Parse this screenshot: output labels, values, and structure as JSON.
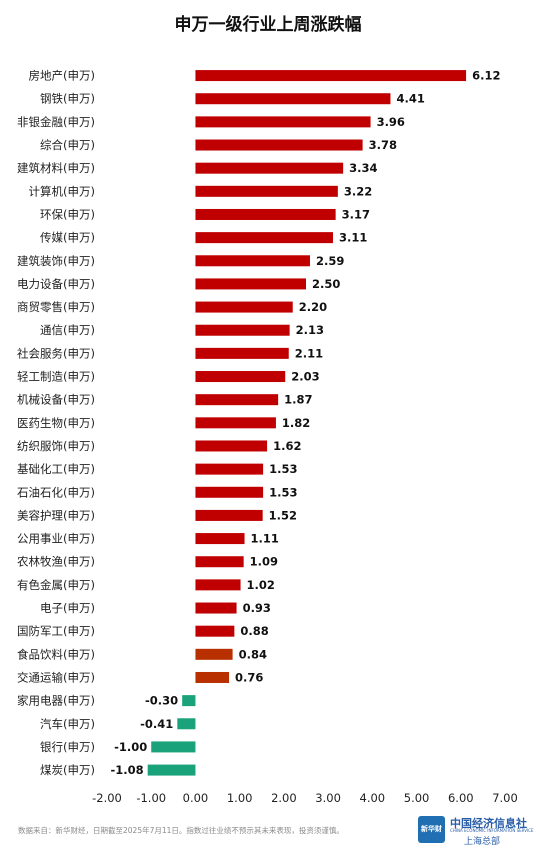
{
  "chart_data": {
    "type": "bar",
    "orientation": "horizontal",
    "title": "申万一级行业上周涨跌幅",
    "categories": [
      "房地产(申万)",
      "钢铁(申万)",
      "非银金融(申万)",
      "综合(申万)",
      "建筑材料(申万)",
      "计算机(申万)",
      "环保(申万)",
      "传媒(申万)",
      "建筑装饰(申万)",
      "电力设备(申万)",
      "商贸零售(申万)",
      "通信(申万)",
      "社会服务(申万)",
      "轻工制造(申万)",
      "机械设备(申万)",
      "医药生物(申万)",
      "纺织服饰(申万)",
      "基础化工(申万)",
      "石油石化(申万)",
      "美容护理(申万)",
      "公用事业(申万)",
      "农林牧渔(申万)",
      "有色金属(申万)",
      "电子(申万)",
      "国防军工(申万)",
      "食品饮料(申万)",
      "交通运输(申万)",
      "家用电器(申万)",
      "汽车(申万)",
      "银行(申万)",
      "煤炭(申万)"
    ],
    "values": [
      6.12,
      4.41,
      3.96,
      3.78,
      3.34,
      3.22,
      3.17,
      3.11,
      2.59,
      2.5,
      2.2,
      2.13,
      2.11,
      2.03,
      1.87,
      1.82,
      1.62,
      1.53,
      1.53,
      1.52,
      1.11,
      1.09,
      1.02,
      0.93,
      0.88,
      0.84,
      0.76,
      -0.3,
      -0.41,
      -1.0,
      -1.08
    ],
    "value_labels": [
      "6.12",
      "4.41",
      "3.96",
      "3.78",
      "3.34",
      "3.22",
      "3.17",
      "3.11",
      "2.59",
      "2.50",
      "2.20",
      "2.13",
      "2.11",
      "2.03",
      "1.87",
      "1.82",
      "1.62",
      "1.53",
      "1.53",
      "1.52",
      "1.11",
      "1.09",
      "1.02",
      "0.93",
      "0.88",
      "0.84",
      "0.76",
      "-0.30",
      "-0.41",
      "-1.00",
      "-1.08"
    ],
    "bar_colors": [
      "#c00000",
      "#c00000",
      "#c00000",
      "#c00000",
      "#c00000",
      "#c00000",
      "#c00000",
      "#c00000",
      "#c00000",
      "#c00000",
      "#c00000",
      "#c00000",
      "#c00000",
      "#c00000",
      "#c00000",
      "#c00000",
      "#c00000",
      "#c00000",
      "#c00000",
      "#c00000",
      "#c00000",
      "#c00000",
      "#c00000",
      "#c00000",
      "#c00000",
      "#b83000",
      "#b83000",
      "#1aa37a",
      "#1aa37a",
      "#1aa37a",
      "#1aa37a"
    ],
    "xlim": [
      -2.0,
      7.0
    ],
    "xticks": [
      -2,
      -1,
      0,
      1,
      2,
      3,
      4,
      5,
      6,
      7
    ],
    "xtick_labels": [
      "-2.00",
      "-1.00",
      "0.00",
      "1.00",
      "2.00",
      "3.00",
      "4.00",
      "5.00",
      "6.00",
      "7.00"
    ],
    "grid": false,
    "legend": "none"
  },
  "footer": {
    "note": "数据来自：新华财经，日期截至2025年7月11日。指数过往业绩不预示其未来表现，投资须谨慎。"
  },
  "logo": {
    "badge": "新华财",
    "name": "中国经济信息社",
    "subtitle": "CHINA ECONOMIC INFORMATION SERVICE",
    "region": "上海总部"
  }
}
